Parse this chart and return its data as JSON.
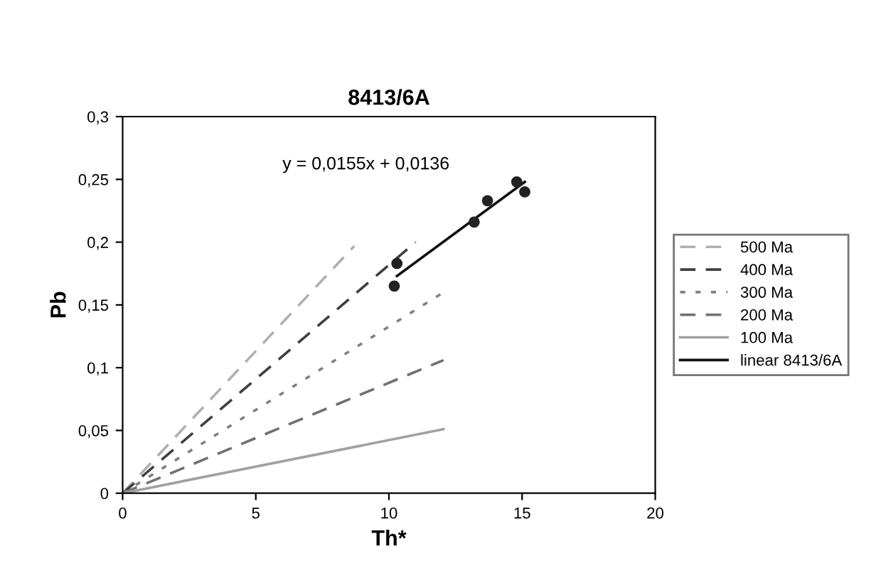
{
  "chart_data": {
    "type": "scatter",
    "title": "8413/6A",
    "xlabel": "Th*",
    "ylabel": "Pb",
    "xlim": [
      0,
      20
    ],
    "ylim": [
      0,
      0.3
    ],
    "xticks": [
      0,
      5,
      10,
      15,
      20
    ],
    "yticks": [
      0,
      {
        "value": 0.05,
        "label": "0,05"
      },
      {
        "value": 0.1,
        "label": "0,1"
      },
      {
        "value": 0.15,
        "label": "0,15"
      },
      {
        "value": 0.2,
        "label": "0,2"
      },
      {
        "value": 0.25,
        "label": "0,25"
      },
      {
        "value": 0.3,
        "label": "0,3"
      }
    ],
    "grid": false,
    "legend": "right",
    "annotations": [
      "y = 0,0155x + 0,0136"
    ],
    "series": [
      {
        "name": "500 Ma",
        "type": "line",
        "color": "#b0b0b0",
        "line_style": "dashed",
        "marker": "none",
        "x": [
          0,
          8.7
        ],
        "values": [
          0,
          0.197
        ]
      },
      {
        "name": "400 Ma",
        "type": "line",
        "color": "#404040",
        "line_style": "dashed",
        "marker": "none",
        "x": [
          0,
          11.0
        ],
        "values": [
          0,
          0.2
        ]
      },
      {
        "name": "300 Ma",
        "type": "line",
        "color": "#808080",
        "line_style": "dotted",
        "marker": "none",
        "x": [
          0,
          12.05
        ],
        "values": [
          0,
          0.16
        ]
      },
      {
        "name": "200 Ma",
        "type": "line",
        "color": "#707070",
        "line_style": "dashed",
        "marker": "none",
        "x": [
          0,
          12.05
        ],
        "values": [
          0,
          0.106
        ]
      },
      {
        "name": "100 Ma",
        "type": "line",
        "color": "#a0a0a0",
        "line_style": "solid",
        "marker": "none",
        "x": [
          0,
          12.05
        ],
        "values": [
          0,
          0.051
        ]
      },
      {
        "color": "#222222",
        "marker": "circle",
        "x": [
          10.3,
          10.2,
          13.2,
          13.7,
          14.8,
          15.1
        ],
        "values": [
          0.183,
          0.165,
          0.216,
          0.233,
          0.248,
          0.24
        ]
      },
      {
        "name": "linear 8413/6A",
        "type": "line",
        "color": "#111111",
        "line_style": "solid",
        "marker": "none",
        "x": [
          10.3,
          15.1
        ],
        "values": [
          0.173,
          0.248
        ]
      }
    ]
  }
}
